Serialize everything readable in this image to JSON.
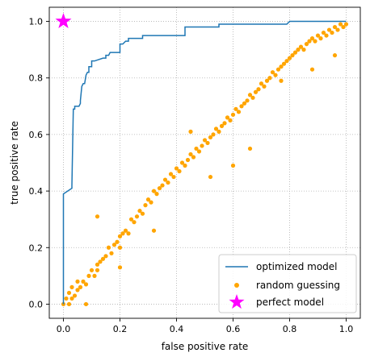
{
  "chart_data": {
    "type": "line",
    "title": "",
    "xlabel": "false positive rate",
    "ylabel": "true positive rate",
    "xlim": [
      -0.05,
      1.05
    ],
    "ylim": [
      -0.05,
      1.05
    ],
    "xticks": [
      "0.0",
      "0.2",
      "0.4",
      "0.6",
      "0.8",
      "1.0"
    ],
    "yticks": [
      "0.0",
      "0.2",
      "0.4",
      "0.6",
      "0.8",
      "1.0"
    ],
    "grid": true,
    "grid_style": "dotted",
    "legend_position": "lower-right",
    "legend": [
      "optimized model",
      "random guessing",
      "perfect model"
    ],
    "series": [
      {
        "name": "optimized model",
        "kind": "line",
        "color": "#1f77b4",
        "x": [
          0.0,
          0.0,
          0.0,
          0.0,
          0.03,
          0.03,
          0.035,
          0.04,
          0.04,
          0.055,
          0.06,
          0.06,
          0.065,
          0.07,
          0.075,
          0.08,
          0.085,
          0.09,
          0.09,
          0.1,
          0.1,
          0.11,
          0.14,
          0.15,
          0.15,
          0.16,
          0.165,
          0.2,
          0.2,
          0.21,
          0.22,
          0.23,
          0.23,
          0.25,
          0.28,
          0.28,
          0.42,
          0.43,
          0.43,
          0.53,
          0.54,
          0.55,
          0.55,
          0.77,
          0.78,
          0.79,
          0.8,
          0.92,
          0.95,
          0.97,
          0.99,
          1.0
        ],
        "y": [
          0.0,
          0.02,
          0.39,
          0.39,
          0.41,
          0.42,
          0.69,
          0.69,
          0.7,
          0.7,
          0.71,
          0.72,
          0.77,
          0.78,
          0.78,
          0.81,
          0.82,
          0.82,
          0.84,
          0.84,
          0.86,
          0.86,
          0.87,
          0.87,
          0.88,
          0.88,
          0.89,
          0.89,
          0.92,
          0.92,
          0.93,
          0.93,
          0.94,
          0.94,
          0.94,
          0.95,
          0.95,
          0.95,
          0.98,
          0.98,
          0.98,
          0.98,
          0.99,
          0.99,
          0.99,
          0.99,
          1.0,
          1.0,
          1.0,
          1.0,
          1.0,
          1.0
        ]
      },
      {
        "name": "random guessing",
        "kind": "scatter",
        "color": "#ffa500",
        "x": [
          0.0,
          0.01,
          0.02,
          0.02,
          0.03,
          0.03,
          0.04,
          0.05,
          0.05,
          0.06,
          0.07,
          0.08,
          0.09,
          0.1,
          0.11,
          0.12,
          0.12,
          0.13,
          0.14,
          0.15,
          0.16,
          0.17,
          0.18,
          0.19,
          0.2,
          0.2,
          0.21,
          0.22,
          0.23,
          0.24,
          0.25,
          0.26,
          0.27,
          0.28,
          0.29,
          0.3,
          0.31,
          0.32,
          0.33,
          0.34,
          0.35,
          0.36,
          0.37,
          0.38,
          0.39,
          0.4,
          0.41,
          0.42,
          0.43,
          0.44,
          0.45,
          0.46,
          0.47,
          0.48,
          0.49,
          0.5,
          0.51,
          0.52,
          0.53,
          0.54,
          0.55,
          0.56,
          0.57,
          0.58,
          0.59,
          0.6,
          0.61,
          0.62,
          0.63,
          0.64,
          0.65,
          0.66,
          0.67,
          0.68,
          0.69,
          0.7,
          0.71,
          0.72,
          0.73,
          0.74,
          0.75,
          0.76,
          0.77,
          0.78,
          0.79,
          0.8,
          0.81,
          0.82,
          0.83,
          0.84,
          0.85,
          0.86,
          0.87,
          0.88,
          0.89,
          0.9,
          0.91,
          0.92,
          0.93,
          0.94,
          0.95,
          0.96,
          0.97,
          0.98,
          0.99,
          1.0,
          0.12,
          0.2,
          0.32,
          0.45,
          0.52,
          0.66,
          0.77,
          0.88,
          0.96,
          0.08,
          0.6
        ],
        "y": [
          0.0,
          0.02,
          0.0,
          0.04,
          0.02,
          0.06,
          0.03,
          0.05,
          0.08,
          0.06,
          0.08,
          0.07,
          0.1,
          0.12,
          0.1,
          0.14,
          0.12,
          0.15,
          0.16,
          0.17,
          0.2,
          0.18,
          0.21,
          0.22,
          0.24,
          0.2,
          0.25,
          0.26,
          0.25,
          0.3,
          0.29,
          0.31,
          0.33,
          0.32,
          0.35,
          0.37,
          0.36,
          0.4,
          0.39,
          0.41,
          0.42,
          0.44,
          0.43,
          0.46,
          0.45,
          0.48,
          0.47,
          0.5,
          0.49,
          0.51,
          0.53,
          0.52,
          0.55,
          0.54,
          0.56,
          0.58,
          0.57,
          0.59,
          0.6,
          0.62,
          0.61,
          0.63,
          0.64,
          0.66,
          0.65,
          0.67,
          0.69,
          0.68,
          0.7,
          0.71,
          0.72,
          0.74,
          0.73,
          0.75,
          0.76,
          0.78,
          0.77,
          0.79,
          0.8,
          0.82,
          0.81,
          0.83,
          0.84,
          0.85,
          0.86,
          0.87,
          0.88,
          0.89,
          0.9,
          0.91,
          0.9,
          0.92,
          0.93,
          0.94,
          0.93,
          0.95,
          0.94,
          0.96,
          0.95,
          0.97,
          0.96,
          0.98,
          0.97,
          0.99,
          0.98,
          0.99,
          0.31,
          0.13,
          0.26,
          0.61,
          0.45,
          0.55,
          0.79,
          0.83,
          0.88,
          0.0,
          0.49
        ]
      },
      {
        "name": "perfect model",
        "kind": "marker",
        "marker": "star",
        "color": "#ff00ff",
        "x": [
          0.0
        ],
        "y": [
          1.0
        ]
      }
    ]
  }
}
